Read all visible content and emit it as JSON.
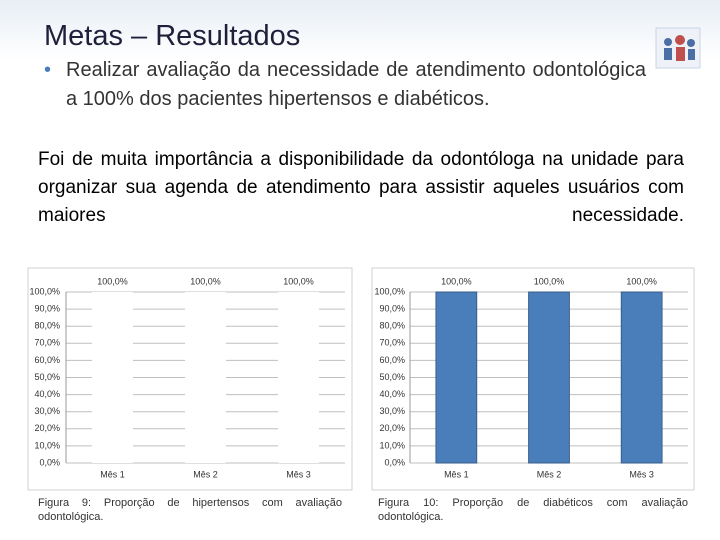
{
  "slide": {
    "title": "Metas – Resultados",
    "bullet": "Realizar avaliação da necessidade de atendimento odontológica a 100% dos pacientes hipertensos e diabéticos.",
    "paragraph": "Foi de muita importância a disponibilidade da odontóloga na unidade para organizar sua agenda de atendimento para assistir aqueles usuários com maiores necessidade."
  },
  "chart_data": [
    {
      "type": "bar",
      "caption": "Figura 9: Proporção de hipertensos com avaliação odontológica.",
      "categories": [
        "Mês 1",
        "Mês 2",
        "Mês 3"
      ],
      "values": [
        100,
        100,
        100
      ],
      "value_labels": [
        "100,0%",
        "100,0%",
        "100,0%"
      ],
      "color": "#ffffff",
      "ylim": [
        0,
        100
      ],
      "grid": true,
      "yticks": [
        {
          "value": 0,
          "label": "0,0%"
        },
        {
          "value": 10,
          "label": "10,0%"
        },
        {
          "value": 20,
          "label": "20,0%"
        },
        {
          "value": 30,
          "label": "30,0%"
        },
        {
          "value": 40,
          "label": "40,0%"
        },
        {
          "value": 50,
          "label": "50,0%"
        },
        {
          "value": 60,
          "label": "60,0%"
        },
        {
          "value": 70,
          "label": "70,0%"
        },
        {
          "value": 80,
          "label": "80,0%"
        },
        {
          "value": 90,
          "label": "90,0%"
        },
        {
          "value": 100,
          "label": "100,0%"
        }
      ]
    },
    {
      "type": "bar",
      "caption": "Figura 10: Proporção de diabéticos com avaliação odontológica.",
      "categories": [
        "Mês 1",
        "Mês 2",
        "Mês 3"
      ],
      "values": [
        100,
        100,
        100
      ],
      "value_labels": [
        "100,0%",
        "100,0%",
        "100,0%"
      ],
      "color": "#4a7ebb",
      "ylim": [
        0,
        100
      ],
      "grid": true,
      "yticks": [
        {
          "value": 0,
          "label": "0,0%"
        },
        {
          "value": 10,
          "label": "10,0%"
        },
        {
          "value": 20,
          "label": "20,0%"
        },
        {
          "value": 30,
          "label": "30,0%"
        },
        {
          "value": 40,
          "label": "40,0%"
        },
        {
          "value": 50,
          "label": "50,0%"
        },
        {
          "value": 60,
          "label": "60,0%"
        },
        {
          "value": 70,
          "label": "70,0%"
        },
        {
          "value": 80,
          "label": "80,0%"
        },
        {
          "value": 90,
          "label": "90,0%"
        },
        {
          "value": 100,
          "label": "100,0%"
        }
      ]
    }
  ]
}
